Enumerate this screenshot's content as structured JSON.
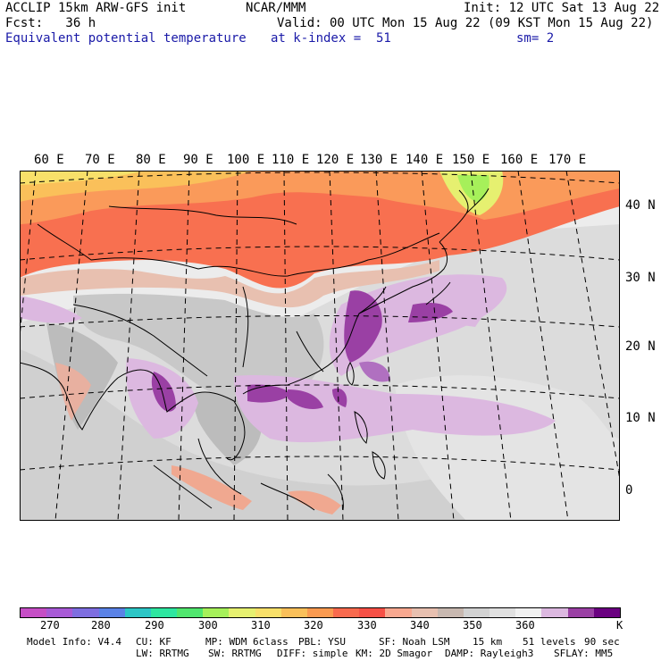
{
  "header": {
    "line1_left": "ACCLIP 15km ARW-GFS init",
    "line1_mid": "NCAR/MMM",
    "line1_right": "Init: 12 UTC Sat 13 Aug 22",
    "line2_left": "Fcst:   36 h",
    "line2_right": "Valid: 00 UTC Mon 15 Aug 22 (09 KST Mon 15 Aug 22)",
    "line3_left": "Equivalent potential temperature",
    "line3_mid": "at k-index =  51",
    "line3_right": "sm= 2"
  },
  "map": {
    "lon_labels": [
      "60 E",
      "70 E",
      "80 E",
      "90 E",
      "100 E",
      "110 E",
      "120 E",
      "130 E",
      "140 E",
      "150 E",
      "160 E",
      "170 E"
    ],
    "lat_labels": [
      "40 N",
      "30 N",
      "20 N",
      "10 N",
      "0"
    ]
  },
  "colorbar": {
    "colors": [
      "#c64ec6",
      "#a85ad6",
      "#7e6ee0",
      "#5a82e6",
      "#2cc6c6",
      "#2ee6a0",
      "#50e66e",
      "#a6f05a",
      "#e6f070",
      "#f8e06a",
      "#fac05a",
      "#fa9a50",
      "#f86a4e",
      "#f65046",
      "#f8a890",
      "#e8c0b0",
      "#c8b8b0",
      "#d2d2d2",
      "#e0e0e0",
      "#f0f0f0",
      "#dcb8e0",
      "#9a40a4",
      "#6a0080"
    ],
    "ticks": [
      "270",
      "280",
      "290",
      "300",
      "310",
      "320",
      "330",
      "340",
      "350",
      "360"
    ],
    "unit": "K"
  },
  "footer": {
    "row1": [
      "Model Info: V4.4",
      "CU: KF",
      "MP: WDM 6class",
      "PBL: YSU",
      "SF: Noah LSM",
      "15 km",
      "51 levels",
      "90 sec"
    ],
    "row2": [
      "LW: RRTMG",
      "SW: RRTMG",
      "DIFF: simple",
      "KM: 2D Smagor",
      "DAMP: Rayleigh3",
      "SFLAY: MM5"
    ]
  }
}
